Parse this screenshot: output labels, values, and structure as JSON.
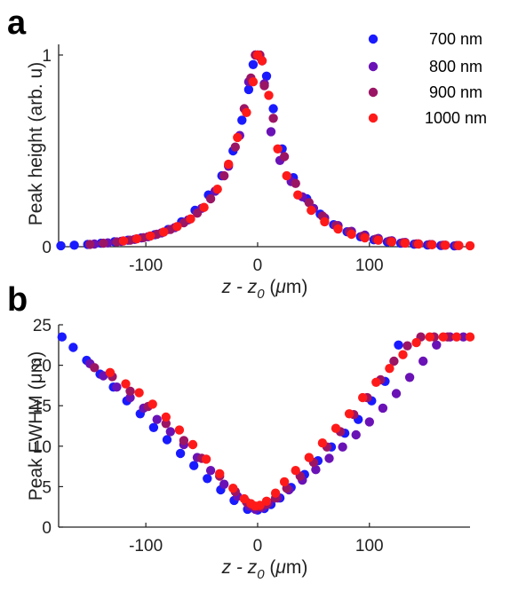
{
  "chart_data": [
    {
      "panel": "a",
      "type": "scatter",
      "xlabel_parts": [
        "z - z",
        "0",
        " (",
        "μ",
        "m)"
      ],
      "ylabel": "Peak height (arb. u)",
      "xlim": [
        -178,
        190
      ],
      "ylim": [
        0,
        1.03
      ],
      "xticks": [
        -100,
        0,
        100
      ],
      "yticks": [
        0,
        1
      ],
      "xtick_labels": [
        "-100",
        "0",
        "100"
      ],
      "ytick_labels": [
        "0",
        "1"
      ],
      "legend_position": "top-right",
      "series": [
        {
          "name": "700 nm",
          "color": "#1a1aff",
          "x": [
            -176,
            -164,
            -152,
            -140,
            -128,
            -116,
            -104,
            -92,
            -80,
            -68,
            -56,
            -44,
            -32,
            -22,
            -14,
            -8,
            -4,
            0,
            4,
            8,
            14,
            22,
            32,
            44,
            56,
            68,
            80,
            92,
            104,
            116,
            128,
            140,
            152,
            164,
            176
          ],
          "y": [
            0.005,
            0.008,
            0.012,
            0.018,
            0.026,
            0.034,
            0.046,
            0.063,
            0.09,
            0.13,
            0.19,
            0.27,
            0.37,
            0.5,
            0.66,
            0.82,
            0.95,
            1.0,
            0.97,
            0.89,
            0.72,
            0.51,
            0.36,
            0.25,
            0.17,
            0.115,
            0.078,
            0.052,
            0.036,
            0.025,
            0.018,
            0.013,
            0.009,
            0.006,
            0.004
          ]
        },
        {
          "name": "800 nm",
          "color": "#6a12b6",
          "x": [
            -146,
            -134,
            -122,
            -110,
            -98,
            -86,
            -74,
            -62,
            -50,
            -38,
            -26,
            -16,
            -8,
            -2,
            2,
            6,
            12,
            20,
            30,
            40,
            50,
            60,
            72,
            84,
            96,
            108,
            120,
            132,
            144,
            156,
            168,
            180
          ],
          "y": [
            0.014,
            0.02,
            0.028,
            0.038,
            0.052,
            0.072,
            0.1,
            0.14,
            0.2,
            0.29,
            0.42,
            0.58,
            0.86,
            1.0,
            0.99,
            0.85,
            0.6,
            0.45,
            0.34,
            0.26,
            0.2,
            0.15,
            0.11,
            0.08,
            0.06,
            0.043,
            0.031,
            0.022,
            0.015,
            0.011,
            0.008,
            0.006
          ]
        },
        {
          "name": "900 nm",
          "color": "#9b1565",
          "x": [
            -150,
            -138,
            -126,
            -114,
            -102,
            -90,
            -78,
            -66,
            -54,
            -42,
            -30,
            -20,
            -12,
            -6,
            -2,
            2,
            6,
            14,
            24,
            34,
            46,
            58,
            70,
            82,
            94,
            106,
            118,
            130,
            142,
            154,
            166,
            178
          ],
          "y": [
            0.012,
            0.018,
            0.025,
            0.034,
            0.047,
            0.065,
            0.09,
            0.125,
            0.175,
            0.25,
            0.37,
            0.52,
            0.72,
            0.88,
            1.0,
            1.0,
            0.84,
            0.67,
            0.47,
            0.33,
            0.23,
            0.16,
            0.11,
            0.078,
            0.055,
            0.04,
            0.029,
            0.021,
            0.015,
            0.011,
            0.008,
            0.006
          ]
        },
        {
          "name": "1000 nm",
          "color": "#ff1a1a",
          "x": [
            -120,
            -108,
            -96,
            -84,
            -72,
            -60,
            -48,
            -36,
            -26,
            -18,
            -10,
            -4,
            0,
            4,
            10,
            18,
            26,
            36,
            48,
            60,
            72,
            84,
            96,
            108,
            120,
            132,
            144,
            156,
            168,
            180,
            190
          ],
          "y": [
            0.03,
            0.041,
            0.056,
            0.077,
            0.105,
            0.145,
            0.205,
            0.3,
            0.43,
            0.57,
            0.7,
            0.86,
            1.0,
            0.97,
            0.79,
            0.51,
            0.37,
            0.27,
            0.19,
            0.13,
            0.092,
            0.065,
            0.046,
            0.034,
            0.025,
            0.019,
            0.014,
            0.01,
            0.008,
            0.006,
            0.005
          ]
        }
      ]
    },
    {
      "panel": "b",
      "type": "scatter",
      "xlabel_parts": [
        "z - z",
        "0",
        " (",
        "μ",
        "m)"
      ],
      "ylabel": "Peak FWHM (μm)",
      "xlim": [
        -178,
        190
      ],
      "ylim": [
        0,
        25
      ],
      "xticks": [
        -100,
        0,
        100
      ],
      "yticks": [
        0,
        5,
        10,
        15,
        20,
        25
      ],
      "xtick_labels": [
        "-100",
        "0",
        "100"
      ],
      "ytick_labels": [
        "0",
        "5",
        "10",
        "15",
        "20",
        "25"
      ],
      "series": [
        {
          "name": "700 nm",
          "color": "#1a1aff",
          "x": [
            -175,
            -165,
            -153,
            -141,
            -129,
            -117,
            -105,
            -93,
            -81,
            -69,
            -57,
            -45,
            -33,
            -21,
            -9,
            0,
            6,
            12,
            20,
            30,
            42,
            54,
            66,
            78,
            90,
            102,
            114,
            126
          ],
          "y": [
            23.5,
            22.2,
            20.6,
            18.9,
            17.3,
            15.6,
            14.0,
            12.3,
            10.8,
            9.1,
            7.6,
            6.0,
            4.6,
            3.3,
            2.2,
            2.1,
            2.3,
            2.8,
            3.6,
            4.9,
            6.5,
            8.2,
            9.9,
            11.6,
            13.3,
            15.6,
            18.0,
            22.5
          ]
        },
        {
          "name": "800 nm",
          "color": "#6a12b6",
          "x": [
            -150,
            -138,
            -126,
            -114,
            -102,
            -90,
            -78,
            -66,
            -54,
            -42,
            -30,
            -18,
            -8,
            -2,
            4,
            10,
            18,
            28,
            40,
            52,
            64,
            76,
            88,
            100,
            112,
            124,
            136,
            148,
            160,
            172,
            184
          ],
          "y": [
            20.2,
            18.7,
            17.3,
            16.0,
            14.7,
            13.3,
            11.8,
            10.2,
            8.6,
            7.0,
            5.3,
            3.8,
            2.6,
            2.2,
            2.4,
            3.0,
            3.6,
            4.6,
            5.8,
            7.1,
            8.5,
            9.9,
            11.4,
            13.0,
            14.7,
            16.5,
            18.5,
            20.5,
            22.5,
            23.5,
            23.5
          ]
        },
        {
          "name": "900 nm",
          "color": "#9b1565",
          "x": [
            -146,
            -130,
            -114,
            -98,
            -82,
            -66,
            -50,
            -34,
            -20,
            -10,
            -4,
            2,
            8,
            16,
            26,
            38,
            50,
            62,
            74,
            86,
            98,
            110,
            122,
            134,
            146,
            158,
            170
          ],
          "y": [
            19.7,
            18.6,
            16.8,
            14.9,
            12.8,
            10.7,
            8.5,
            6.3,
            4.4,
            3.1,
            2.6,
            2.5,
            2.8,
            3.6,
            4.8,
            6.3,
            8.0,
            9.9,
            11.8,
            13.9,
            16.0,
            18.2,
            20.5,
            22.4,
            23.5,
            23.5,
            23.5
          ]
        },
        {
          "name": "1000 nm",
          "color": "#ff1a1a",
          "x": [
            -132,
            -118,
            -106,
            -94,
            -82,
            -70,
            -58,
            -46,
            -34,
            -22,
            -12,
            -6,
            -2,
            2,
            8,
            16,
            24,
            34,
            46,
            58,
            70,
            82,
            94,
            106,
            118,
            130,
            142,
            154,
            166,
            178,
            190
          ],
          "y": [
            19.1,
            17.7,
            16.6,
            15.2,
            13.6,
            12.0,
            10.2,
            8.4,
            6.6,
            4.8,
            3.5,
            2.9,
            2.6,
            2.7,
            3.2,
            4.2,
            5.6,
            7.0,
            8.6,
            10.4,
            12.2,
            14.0,
            16.0,
            17.9,
            19.6,
            21.3,
            22.8,
            23.5,
            23.5,
            23.5,
            23.5
          ]
        }
      ]
    }
  ]
}
